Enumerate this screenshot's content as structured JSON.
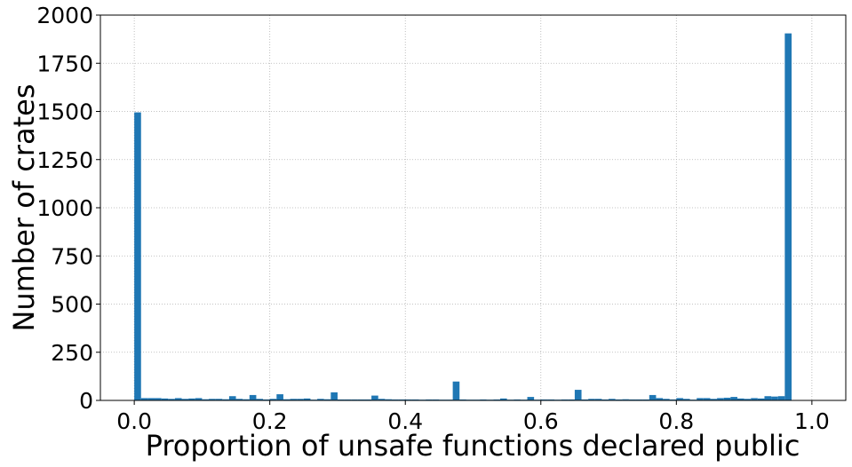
{
  "chart_data": {
    "type": "bar",
    "title": "",
    "xlabel": "Proportion of unsafe functions declared public",
    "ylabel": "Number of crates",
    "xlim": [
      -0.05,
      1.05
    ],
    "ylim": [
      0,
      2000
    ],
    "xticks": [
      0.0,
      0.2,
      0.4,
      0.6,
      0.8,
      1.0
    ],
    "xtick_labels": [
      "0.0",
      "0.2",
      "0.4",
      "0.6",
      "0.8",
      "1.0"
    ],
    "yticks": [
      0,
      250,
      500,
      750,
      1000,
      1250,
      1500,
      1750,
      2000
    ],
    "ytick_labels": [
      "0",
      "250",
      "500",
      "750",
      "1000",
      "1250",
      "1500",
      "1750",
      "2000"
    ],
    "grid": true,
    "bar_color": "#1f77b4",
    "bin_width": 0.01,
    "bins_x": [
      0.0,
      0.01,
      0.02,
      0.03,
      0.04,
      0.05,
      0.06,
      0.07,
      0.08,
      0.09,
      0.1,
      0.11,
      0.12,
      0.13,
      0.14,
      0.15,
      0.16,
      0.17,
      0.18,
      0.19,
      0.2,
      0.21,
      0.22,
      0.23,
      0.24,
      0.25,
      0.26,
      0.27,
      0.28,
      0.29,
      0.3,
      0.31,
      0.32,
      0.33,
      0.34,
      0.35,
      0.36,
      0.37,
      0.38,
      0.39,
      0.4,
      0.41,
      0.42,
      0.43,
      0.44,
      0.45,
      0.46,
      0.47,
      0.48,
      0.49,
      0.5,
      0.51,
      0.52,
      0.53,
      0.54,
      0.55,
      0.56,
      0.57,
      0.58,
      0.59,
      0.6,
      0.61,
      0.62,
      0.63,
      0.64,
      0.65,
      0.66,
      0.67,
      0.68,
      0.69,
      0.7,
      0.71,
      0.72,
      0.73,
      0.74,
      0.75,
      0.76,
      0.77,
      0.78,
      0.79,
      0.8,
      0.81,
      0.82,
      0.83,
      0.84,
      0.85,
      0.86,
      0.87,
      0.88,
      0.89,
      0.9,
      0.91,
      0.92,
      0.93,
      0.94,
      0.95,
      0.96,
      0.97,
      0.98,
      0.99
    ],
    "values": [
      1495,
      12,
      12,
      12,
      10,
      8,
      12,
      8,
      10,
      12,
      6,
      8,
      8,
      6,
      22,
      8,
      6,
      28,
      8,
      5,
      8,
      32,
      6,
      8,
      8,
      10,
      4,
      8,
      6,
      42,
      5,
      5,
      5,
      5,
      5,
      25,
      8,
      6,
      5,
      5,
      5,
      5,
      4,
      5,
      5,
      4,
      4,
      98,
      5,
      4,
      4,
      5,
      4,
      5,
      10,
      4,
      5,
      4,
      18,
      4,
      5,
      5,
      4,
      5,
      5,
      55,
      5,
      8,
      8,
      5,
      8,
      5,
      6,
      5,
      5,
      5,
      28,
      12,
      8,
      5,
      12,
      8,
      4,
      12,
      12,
      8,
      12,
      14,
      18,
      10,
      8,
      12,
      10,
      22,
      20,
      22,
      1905,
      0,
      0,
      0
    ]
  }
}
